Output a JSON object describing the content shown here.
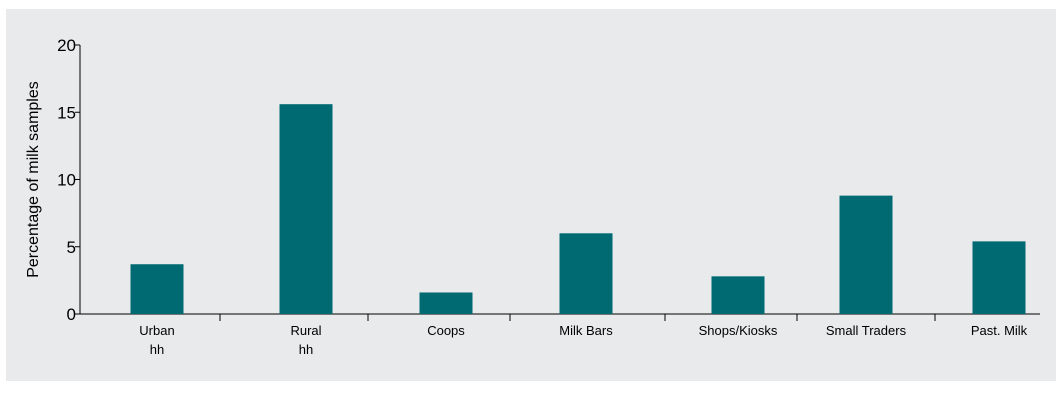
{
  "chart_data": {
    "type": "bar",
    "ylabel": "Percentage of milk samples",
    "ylim": [
      0,
      20
    ],
    "yticks": [
      "0",
      "5",
      "10",
      "15",
      "20"
    ],
    "bar_color": "#006a73",
    "categories": [
      [
        "Urban",
        "hh"
      ],
      [
        "Rural",
        "hh"
      ],
      [
        "Coops"
      ],
      [
        "Milk Bars"
      ],
      [
        "Shops/Kiosks"
      ],
      [
        "Small Traders"
      ],
      [
        "Past. Milk"
      ]
    ],
    "values": [
      3.7,
      15.6,
      1.6,
      6.0,
      2.8,
      8.8,
      5.4
    ],
    "grid": false,
    "legend": "none"
  }
}
